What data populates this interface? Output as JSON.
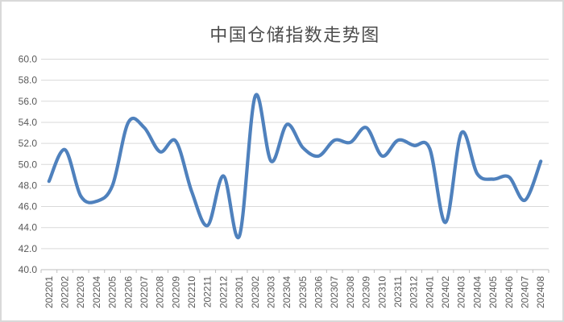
{
  "chart_data": {
    "type": "line",
    "title": "中国仓储指数走势图",
    "xlabel": "",
    "ylabel": "",
    "ylim": [
      40.0,
      60.0
    ],
    "y_tick_step": 2.0,
    "y_tick_labels": [
      "60.0",
      "58.0",
      "56.0",
      "54.0",
      "52.0",
      "50.0",
      "48.0",
      "46.0",
      "44.0",
      "42.0",
      "40.0"
    ],
    "grid": true,
    "legend": "none",
    "smooth": true,
    "categories": [
      "202201",
      "202202",
      "202203",
      "202204",
      "202205",
      "202206",
      "202207",
      "202208",
      "202209",
      "202210",
      "202211",
      "202212",
      "202301",
      "202302",
      "202303",
      "202304",
      "202305",
      "202306",
      "202307",
      "202308",
      "202309",
      "202310",
      "202311",
      "202312",
      "202401",
      "202402",
      "202403",
      "202404",
      "202405",
      "202406",
      "202407",
      "202408"
    ],
    "values": [
      48.4,
      51.4,
      47.0,
      46.5,
      48.0,
      54.0,
      53.5,
      51.2,
      52.2,
      47.4,
      44.2,
      48.9,
      43.2,
      56.5,
      50.3,
      53.8,
      51.6,
      50.8,
      52.3,
      52.1,
      53.5,
      50.8,
      52.3,
      51.8,
      51.5,
      44.5,
      53.0,
      49.1,
      48.6,
      48.8,
      46.6,
      50.3
    ]
  },
  "colors": {
    "line": "#4F81BD",
    "gridline": "#D9D9D9",
    "axis": "#BFBFBF",
    "axis_text": "#595959",
    "title_text": "#4C4C4C",
    "border": "#D9D9D9",
    "background": "#FFFFFF"
  }
}
